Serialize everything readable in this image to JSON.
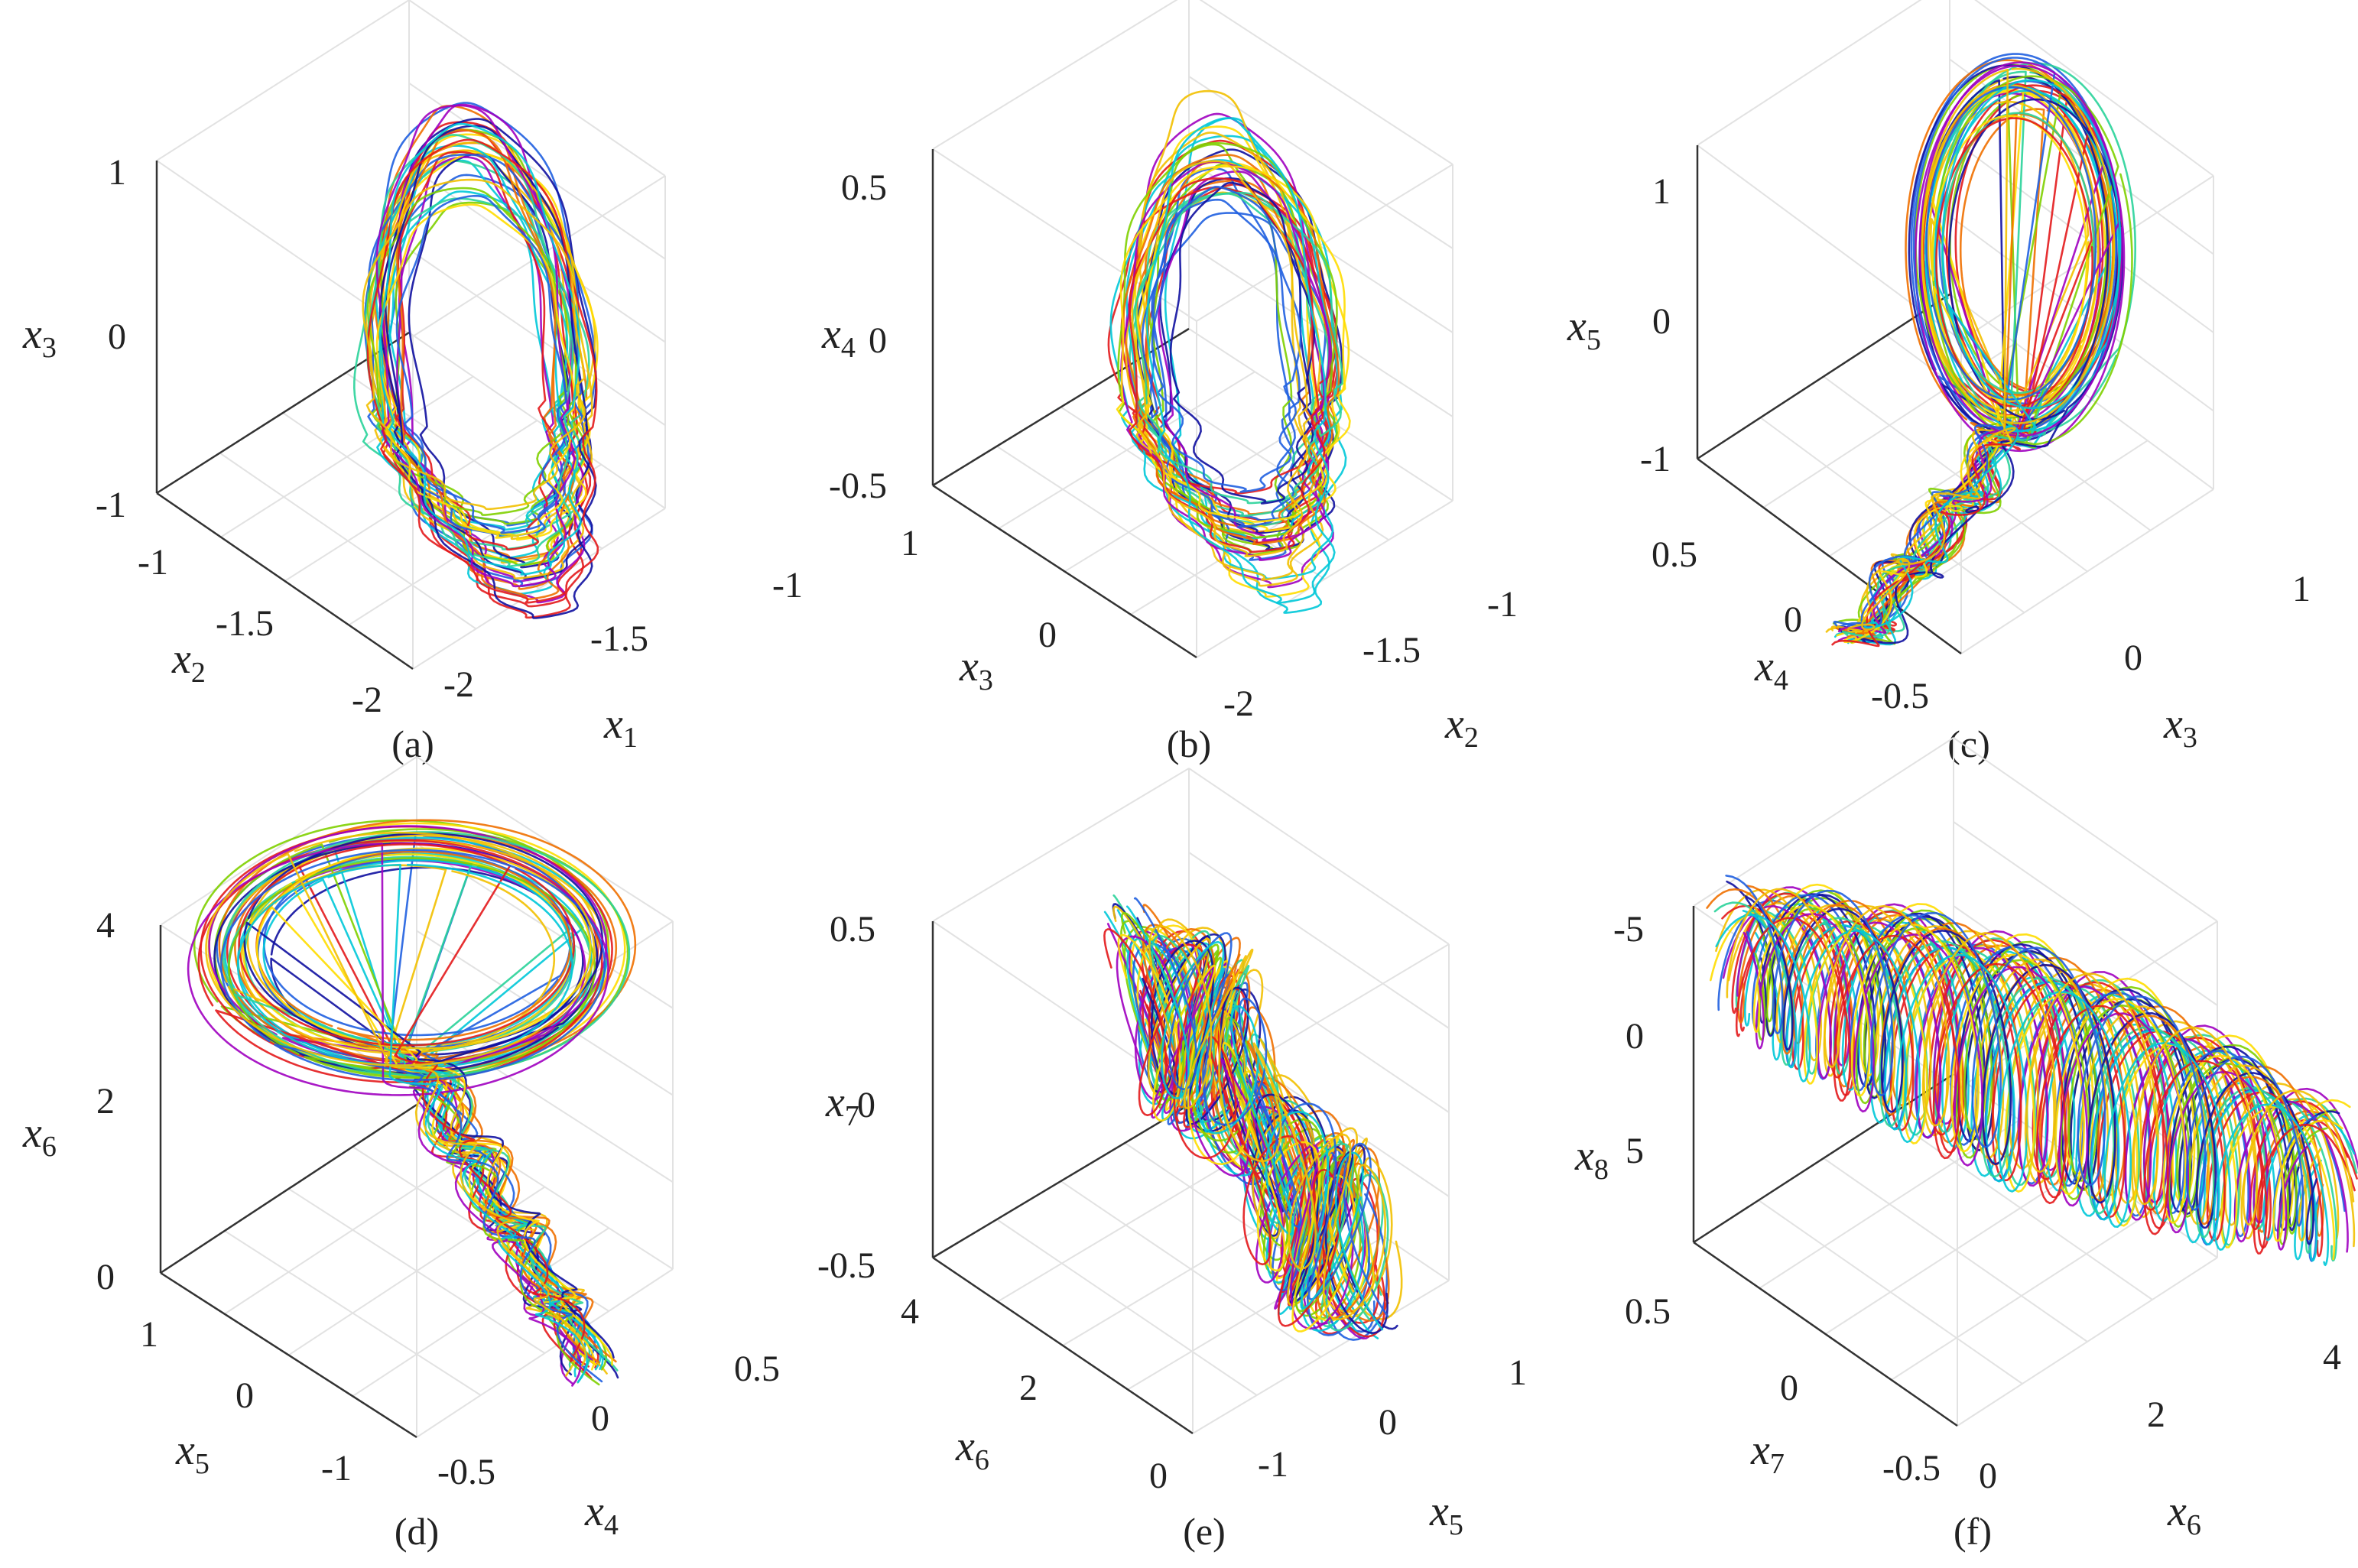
{
  "palette": [
    "#e31a1c",
    "#1f5fe0",
    "#00c8d8",
    "#f2c000",
    "#7fd000",
    "#f07000",
    "#2ad39a",
    "#1010a0",
    "#a000c0",
    "#ffdd00"
  ],
  "chart_data": [
    {
      "type": "line",
      "panel_label": "(a)",
      "projection_axes": [
        "x1",
        "x2",
        "x3"
      ],
      "xlabel": "x",
      "xlabel_sub": "1",
      "ylabel": "x",
      "ylabel_sub": "2",
      "zlabel": "x",
      "zlabel_sub": "3",
      "x_ticks": [
        "-2",
        "-1.5",
        "-1"
      ],
      "y_ticks": [
        "-2",
        "-1.5",
        "-1"
      ],
      "z_ticks": [
        "-1",
        "0",
        "1"
      ],
      "shape": "loop",
      "trajectory_count": 34
    },
    {
      "type": "line",
      "panel_label": "(b)",
      "projection_axes": [
        "x2",
        "x3",
        "x4"
      ],
      "xlabel": "x",
      "xlabel_sub": "2",
      "ylabel": "x",
      "ylabel_sub": "3",
      "zlabel": "x",
      "zlabel_sub": "4",
      "x_ticks": [
        "-2",
        "-1.5",
        "-1"
      ],
      "y_ticks": [
        "0",
        "1"
      ],
      "z_ticks": [
        "-0.5",
        "0",
        "0.5"
      ],
      "shape": "loop",
      "trajectory_count": 34
    },
    {
      "type": "line",
      "panel_label": "(c)",
      "projection_axes": [
        "x3",
        "x4",
        "x5"
      ],
      "xlabel": "x",
      "xlabel_sub": "3",
      "ylabel": "x",
      "ylabel_sub": "4",
      "zlabel": "x",
      "zlabel_sub": "5",
      "x_ticks": [
        "0",
        "1"
      ],
      "y_ticks": [
        "-0.5",
        "0",
        "0.5"
      ],
      "z_ticks": [
        "-1",
        "0",
        "1"
      ],
      "shape": "hook",
      "trajectory_count": 34
    },
    {
      "type": "line",
      "panel_label": "(d)",
      "projection_axes": [
        "x4",
        "x5",
        "x6"
      ],
      "xlabel": "x",
      "xlabel_sub": "4",
      "ylabel": "x",
      "ylabel_sub": "5",
      "zlabel": "x",
      "zlabel_sub": "6",
      "x_ticks": [
        "-0.5",
        "0",
        "0.5"
      ],
      "y_ticks": [
        "-1",
        "0",
        "1"
      ],
      "z_ticks": [
        "0",
        "2",
        "4"
      ],
      "shape": "tear",
      "trajectory_count": 34
    },
    {
      "type": "line",
      "panel_label": "(e)",
      "projection_axes": [
        "x5",
        "x6",
        "x7"
      ],
      "xlabel": "x",
      "xlabel_sub": "5",
      "ylabel": "x",
      "ylabel_sub": "6",
      "zlabel": "x",
      "zlabel_sub": "7",
      "x_ticks": [
        "-1",
        "0",
        "1"
      ],
      "y_ticks": [
        "0",
        "2",
        "4"
      ],
      "z_ticks": [
        "-0.5",
        "0",
        "0.5"
      ],
      "shape": "zigzag",
      "trajectory_count": 34
    },
    {
      "type": "line",
      "panel_label": "(f)",
      "projection_axes": [
        "x6",
        "x7",
        "x8"
      ],
      "xlabel": "x",
      "xlabel_sub": "6",
      "ylabel": "x",
      "ylabel_sub": "7",
      "zlabel": "x",
      "zlabel_sub": "8",
      "x_ticks": [
        "0",
        "2",
        "4"
      ],
      "y_ticks": [
        "-0.5",
        "0",
        "0.5"
      ],
      "z_ticks": [
        "-5",
        "0",
        "5"
      ],
      "shape": "coil",
      "trajectory_count": 34
    }
  ]
}
